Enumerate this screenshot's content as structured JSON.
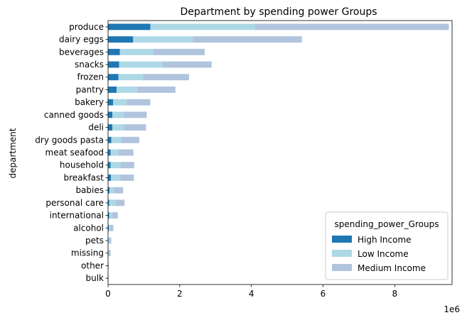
{
  "chart_data": {
    "type": "bar",
    "orientation": "horizontal",
    "stacked": true,
    "title": "Department by spending power Groups",
    "xlabel": "",
    "ylabel": "department",
    "x_offset_label": "1e6",
    "xlim": [
      0,
      9.6
    ],
    "x_ticks": [
      "0",
      "2",
      "4",
      "6",
      "8"
    ],
    "grid": false,
    "categories": [
      "produce",
      "dairy eggs",
      "beverages",
      "snacks",
      "frozen",
      "pantry",
      "bakery",
      "canned goods",
      "deli",
      "dry goods pasta",
      "meat seafood",
      "household",
      "breakfast",
      "babies",
      "personal care",
      "international",
      "alcohol",
      "pets",
      "missing",
      "other",
      "bulk"
    ],
    "series": [
      {
        "name": "High Income",
        "color": "#1f77b4",
        "values": [
          1.18,
          0.7,
          0.33,
          0.31,
          0.29,
          0.24,
          0.14,
          0.12,
          0.12,
          0.09,
          0.07,
          0.07,
          0.08,
          0.04,
          0.03,
          0.03,
          0.02,
          0.01,
          0.01,
          0.003,
          0.002
        ]
      },
      {
        "name": "Low Income",
        "color": "#add8e6",
        "values": [
          2.92,
          1.67,
          0.93,
          1.21,
          0.69,
          0.57,
          0.37,
          0.32,
          0.33,
          0.28,
          0.22,
          0.28,
          0.26,
          0.12,
          0.19,
          0.09,
          0.04,
          0.03,
          0.02,
          0.003,
          0.003
        ]
      },
      {
        "name": "Medium Income",
        "color": "#b0c4de",
        "values": [
          5.41,
          3.04,
          1.44,
          1.37,
          1.28,
          1.07,
          0.67,
          0.64,
          0.61,
          0.5,
          0.42,
          0.38,
          0.38,
          0.26,
          0.24,
          0.15,
          0.09,
          0.05,
          0.04,
          0.012,
          0.01
        ]
      }
    ],
    "legend": {
      "title": "spending_power_Groups",
      "placement": "lower-right"
    }
  }
}
